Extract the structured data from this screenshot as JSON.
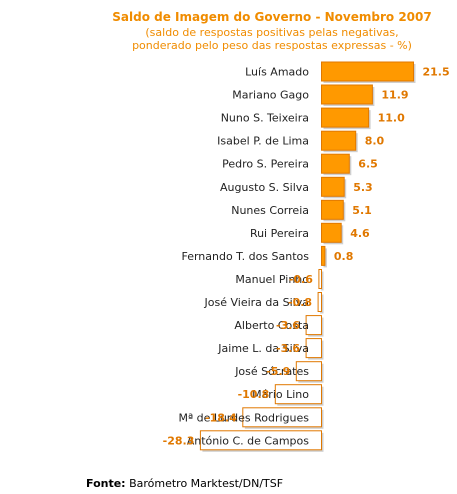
{
  "chart_data": {
    "type": "bar",
    "orientation": "horizontal",
    "title": "Saldo de Imagem do Governo - Novembro 2007",
    "subtitle_lines": [
      "(saldo de respostas positivas pelas negativas,",
      "ponderado pelo peso das respostas expressas - %)"
    ],
    "categories": [
      "Luís Amado",
      "Mariano Gago",
      "Nuno S. Teixeira",
      "Isabel P. de Lima",
      "Pedro S. Pereira",
      "Augusto S. Silva",
      "Nunes Correia",
      "Rui Pereira",
      "Fernando T. dos Santos",
      "Manuel Pinho",
      "José Vieira da Silva",
      "Alberto Costa",
      "Jaime L. da Silva",
      "José Sócrates",
      "Mário Lino",
      "Mª de Lurdes Rodrigues",
      "António C. de Campos"
    ],
    "values": [
      21.5,
      11.9,
      11.0,
      8.0,
      6.5,
      5.3,
      5.1,
      4.6,
      0.8,
      -0.6,
      -0.8,
      -3.6,
      -3.6,
      -5.9,
      -10.8,
      -18.4,
      -28.3
    ],
    "value_labels": [
      "21.5",
      "11.9",
      "11.0",
      "8.0",
      "6.5",
      "5.3",
      "5.1",
      "4.6",
      "0.8",
      "-0.6",
      "-0.8",
      "-3.6",
      "-3.6",
      "-5.9",
      "-10.8",
      "-18.4",
      "-28.3"
    ],
    "positive_color": "#ff9900",
    "negative_fill": "#ffffff",
    "bar_border": "#e07800",
    "value_label_color": "#e07800",
    "grid": false,
    "legend": "none"
  },
  "source": {
    "label": "Fonte:",
    "text": "Barómetro Marktest/DN/TSF"
  }
}
